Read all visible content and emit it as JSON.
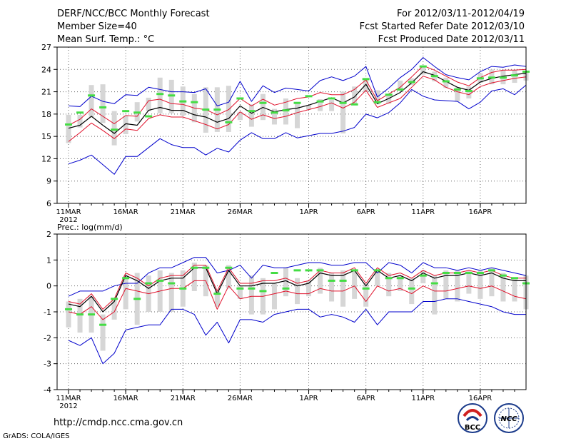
{
  "header": {
    "title": "DERF/NCC/BCC Monthly Forecast",
    "member_size": "Member Size=40",
    "variable": "Mean Surf. Temp.: °C",
    "period": "For 2012/03/11-2012/04/19",
    "start_ref": "Fcst Started Refer Date 2012/03/10",
    "produced": "Fcst Produced Date 2012/03/11"
  },
  "footer": {
    "url": "http://cmdp.ncc.cma.gov.cn",
    "credit": "GrADS: COLA/IGES",
    "logo_bcc": "BCC",
    "logo_ncc": "NCC"
  },
  "colors": {
    "mean": "#000000",
    "spread": "#e0102a",
    "extreme": "#0000cc",
    "box": "#d6d6d6",
    "clim": "#44dd44"
  },
  "chart_data": [
    {
      "type": "line",
      "title": "Mean Surf. Temp.: °C",
      "x_tick_labels": [
        "11MAR",
        "16MAR",
        "21MAR",
        "26MAR",
        "1APR",
        "6APR",
        "11APR",
        "16APR"
      ],
      "x_tick_days": [
        1,
        6,
        11,
        16,
        22,
        27,
        32,
        37
      ],
      "year_label": "2012",
      "xlim": [
        0,
        41
      ],
      "ylim": [
        6,
        27
      ],
      "yticks": [
        6,
        9,
        12,
        15,
        18,
        21,
        24,
        27
      ],
      "series": [
        {
          "name": "max",
          "color_key": "extreme",
          "values": [
            11.3,
            11.8,
            12.5,
            11.2,
            9.9,
            12.3,
            12.3,
            13.5,
            14.7,
            13.9,
            13.5,
            13.5,
            12.5,
            13.4,
            12.9,
            14.5,
            15.5,
            14.7,
            14.7,
            15.5,
            14.8,
            15.1,
            15.4,
            15.4,
            15.7,
            16.2,
            18.0,
            17.5,
            18.2,
            19.5,
            21.3,
            20.4,
            19.9,
            19.8,
            19.7,
            18.7,
            19.6,
            21.1,
            21.4,
            20.6,
            21.9
          ]
        },
        {
          "name": "min",
          "color_key": "extreme",
          "values": [
            19.1,
            19.0,
            20.4,
            19.7,
            19.4,
            20.6,
            20.5,
            21.6,
            21.3,
            21.0,
            21.0,
            20.9,
            21.4,
            19.1,
            19.6,
            22.4,
            19.7,
            21.8,
            20.9,
            21.5,
            21.3,
            21.1,
            22.5,
            23.0,
            22.5,
            23.1,
            24.4,
            20.3,
            21.5,
            22.9,
            24.0,
            25.6,
            24.4,
            23.3,
            22.9,
            22.6,
            23.7,
            24.4,
            24.3,
            24.6,
            24.4
          ]
        }
      ],
      "mean": [
        16.1,
        16.5,
        17.7,
        16.5,
        15.4,
        16.7,
        16.5,
        18.5,
        18.9,
        18.5,
        18.5,
        17.9,
        17.6,
        16.9,
        17.4,
        19.1,
        18.1,
        18.9,
        18.3,
        18.6,
        18.8,
        19.2,
        19.7,
        20.2,
        19.5,
        20.3,
        22.0,
        19.4,
        20.1,
        20.9,
        22.2,
        23.7,
        23.2,
        22.4,
        21.6,
        21.2,
        22.3,
        22.8,
        23.1,
        23.3,
        23.5
      ],
      "spread_upper": [
        16.5,
        17.3,
        18.7,
        17.7,
        16.7,
        17.8,
        17.7,
        19.8,
        20.0,
        19.4,
        19.3,
        18.8,
        18.6,
        17.9,
        18.6,
        20.1,
        19.1,
        20.0,
        19.2,
        19.6,
        20.1,
        20.3,
        20.9,
        20.6,
        20.6,
        21.3,
        22.6,
        19.8,
        20.7,
        21.6,
        23.0,
        24.5,
        23.9,
        23.1,
        22.3,
        21.8,
        22.9,
        23.6,
        23.9,
        23.9,
        24.0
      ],
      "spread_lower": [
        14.3,
        15.5,
        16.8,
        15.8,
        14.7,
        16.0,
        15.8,
        17.4,
        17.9,
        17.6,
        17.6,
        17.1,
        16.6,
        16.0,
        16.6,
        18.3,
        17.3,
        17.9,
        17.4,
        17.7,
        18.2,
        18.6,
        19.0,
        19.5,
        18.8,
        19.6,
        21.2,
        18.9,
        19.5,
        20.1,
        21.6,
        23.1,
        22.6,
        21.6,
        21.0,
        20.6,
        21.7,
        22.2,
        22.5,
        22.8,
        23.0
      ],
      "box_top": [
        17.9,
        17.9,
        21.9,
        22.0,
        18.4,
        17.8,
        19.6,
        20.2,
        22.9,
        22.6,
        21.7,
        20.7,
        21.6,
        21.6,
        21.8,
        18.3,
        19.3,
        20.7,
        18.7,
        20.1,
        19.4,
        19.2,
        20.0,
        19.9,
        21.0,
        21.7,
        22.6,
        21.2,
        20.6,
        22.5,
        22.8,
        24.5,
        23.7,
        22.9,
        21.6,
        21.7,
        23.5,
        24.0,
        23.9,
        23.9,
        23.6
      ],
      "box_bottom": [
        14.1,
        16.2,
        17.6,
        16.8,
        13.8,
        15.3,
        17.0,
        18.4,
        18.1,
        18.1,
        17.8,
        16.9,
        15.5,
        15.6,
        15.6,
        17.2,
        16.3,
        17.2,
        16.6,
        16.6,
        16.1,
        18.6,
        18.4,
        18.4,
        15.4,
        19.2,
        21.0,
        19.3,
        19.4,
        21.3,
        21.9,
        23.3,
        22.4,
        21.5,
        19.7,
        20.1,
        22.2,
        22.0,
        22.0,
        22.2,
        22.5
      ],
      "climatology": [
        16.6,
        18.2,
        20.5,
        18.9,
        15.9,
        18.4,
        18.2,
        17.7,
        20.7,
        20.5,
        19.7,
        19.6,
        18.6,
        18.6,
        16.9,
        20.1,
        18.4,
        19.5,
        18.2,
        18.5,
        19.5,
        20.4,
        19.7,
        20.1,
        19.5,
        19.3,
        22.7,
        19.6,
        20.6,
        21.3,
        22.3,
        24.4,
        23.1,
        22.4,
        21.3,
        21.1,
        22.8,
        22.9,
        22.9,
        23.2,
        23.7
      ]
    },
    {
      "type": "line",
      "title": "Prec.: log(mm/d)",
      "x_tick_labels": [
        "11MAR",
        "16MAR",
        "21MAR",
        "26MAR",
        "1APR",
        "6APR",
        "11APR",
        "16APR"
      ],
      "x_tick_days": [
        1,
        6,
        11,
        16,
        22,
        27,
        32,
        37
      ],
      "year_label": "2012",
      "xlim": [
        0,
        41
      ],
      "ylim": [
        -4,
        2
      ],
      "yticks": [
        -4,
        -3,
        -2,
        -1,
        0,
        1,
        2
      ],
      "series": [
        {
          "name": "max",
          "color_key": "extreme",
          "values": [
            -2.1,
            -2.3,
            -2.0,
            -3.0,
            -2.6,
            -1.7,
            -1.6,
            -1.5,
            -1.5,
            -0.9,
            -0.9,
            -1.1,
            -1.9,
            -1.4,
            -2.2,
            -1.3,
            -1.3,
            -1.4,
            -1.1,
            -1.0,
            -0.9,
            -0.9,
            -1.2,
            -1.1,
            -1.2,
            -1.4,
            -0.9,
            -1.5,
            -1.0,
            -1.0,
            -1.0,
            -0.6,
            -0.6,
            -0.5,
            -0.5,
            -0.6,
            -0.7,
            -0.8,
            -1.0,
            -1.1,
            -1.1
          ]
        },
        {
          "name": "min",
          "color_key": "extreme",
          "values": [
            -0.4,
            -0.2,
            -0.2,
            -0.2,
            0.0,
            0.1,
            0.1,
            0.5,
            0.7,
            0.7,
            0.9,
            1.1,
            1.1,
            0.5,
            0.6,
            0.8,
            0.3,
            0.8,
            0.7,
            0.7,
            0.8,
            0.9,
            0.9,
            0.8,
            0.8,
            0.9,
            0.9,
            0.5,
            0.9,
            0.8,
            0.5,
            0.9,
            0.7,
            0.7,
            0.6,
            0.7,
            0.6,
            0.7,
            0.6,
            0.5,
            0.4
          ]
        }
      ],
      "mean": [
        -0.7,
        -0.8,
        -0.4,
        -1.0,
        -0.6,
        0.4,
        0.2,
        -0.1,
        0.2,
        0.3,
        0.3,
        0.7,
        0.7,
        -0.3,
        0.6,
        0.0,
        0.0,
        0.1,
        0.1,
        0.2,
        0.0,
        0.1,
        0.5,
        0.4,
        0.4,
        0.6,
        0.0,
        0.6,
        0.3,
        0.4,
        0.2,
        0.5,
        0.3,
        0.4,
        0.4,
        0.5,
        0.4,
        0.5,
        0.3,
        0.2,
        0.2
      ],
      "spread_upper": [
        -0.6,
        -0.7,
        -0.3,
        -0.9,
        -0.5,
        0.5,
        0.3,
        0.0,
        0.3,
        0.4,
        0.4,
        0.8,
        0.8,
        -0.2,
        0.7,
        0.1,
        0.1,
        0.2,
        0.2,
        0.3,
        0.1,
        0.2,
        0.6,
        0.5,
        0.5,
        0.7,
        0.1,
        0.7,
        0.4,
        0.5,
        0.3,
        0.6,
        0.4,
        0.5,
        0.5,
        0.6,
        0.5,
        0.6,
        0.4,
        0.3,
        0.3
      ],
      "spread_lower": [
        -1.0,
        -1.1,
        -0.8,
        -1.3,
        -1.0,
        -0.1,
        -0.2,
        -0.3,
        -0.2,
        -0.1,
        -0.1,
        0.2,
        0.2,
        -0.9,
        0.0,
        -0.5,
        -0.4,
        -0.4,
        -0.3,
        -0.2,
        -0.3,
        -0.3,
        -0.1,
        -0.2,
        -0.2,
        0.0,
        -0.6,
        0.0,
        -0.2,
        -0.1,
        -0.3,
        0.0,
        -0.2,
        -0.2,
        -0.1,
        0.0,
        -0.1,
        0.0,
        -0.2,
        -0.4,
        -0.5
      ],
      "box_top": [
        -0.6,
        -0.5,
        -0.4,
        -1.1,
        -0.5,
        0.4,
        0.5,
        0.4,
        0.6,
        0.5,
        0.6,
        0.9,
        0.8,
        -0.2,
        0.8,
        0.0,
        0.4,
        0.3,
        0.1,
        0.7,
        0.3,
        0.2,
        0.7,
        0.5,
        0.6,
        0.6,
        0.1,
        0.6,
        0.5,
        0.4,
        0.3,
        0.6,
        0.4,
        0.6,
        0.6,
        0.6,
        0.6,
        0.7,
        0.5,
        0.3,
        0.4
      ],
      "box_bottom": [
        -1.6,
        -1.8,
        -1.8,
        -2.5,
        -1.3,
        -0.9,
        -1.5,
        -1.0,
        -1.0,
        -1.0,
        -0.8,
        -0.2,
        -0.4,
        -0.8,
        -0.1,
        -0.5,
        -1.1,
        -1.1,
        -0.9,
        -0.4,
        -0.7,
        -0.4,
        -0.3,
        -0.6,
        -0.8,
        -0.5,
        -0.8,
        0.0,
        -0.4,
        -0.2,
        -0.7,
        0.1,
        -1.1,
        -0.5,
        -0.6,
        -0.3,
        -0.5,
        -0.4,
        -0.6,
        -0.6,
        -0.9
      ],
      "climatology": [
        -0.9,
        -1.1,
        -1.1,
        -1.5,
        -0.5,
        0.3,
        -0.5,
        0.1,
        0.2,
        0.1,
        -0.1,
        0.7,
        0.7,
        -0.3,
        0.7,
        -0.1,
        -0.1,
        -0.2,
        0.5,
        -0.1,
        0.6,
        0.6,
        0.6,
        0.2,
        0.2,
        0.6,
        -0.1,
        0.6,
        0.3,
        0.3,
        -0.1,
        0.4,
        0.1,
        0.5,
        0.5,
        0.5,
        0.5,
        0.6,
        0.4,
        0.3,
        0.1
      ]
    }
  ]
}
